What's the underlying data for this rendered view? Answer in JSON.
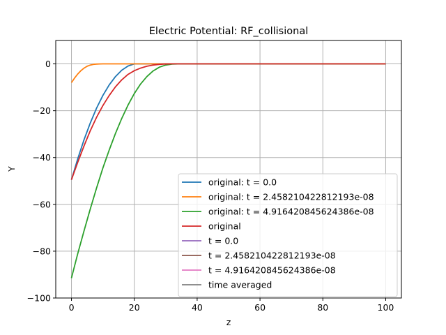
{
  "chart_data": {
    "type": "line",
    "title": "Electric Potential: RF_collisional",
    "xlabel": "z",
    "ylabel": "Y",
    "xlim": [
      -5,
      105
    ],
    "ylim": [
      -100,
      10
    ],
    "xticks": [
      0,
      20,
      40,
      60,
      80,
      100
    ],
    "yticks": [
      -100,
      -80,
      -60,
      -40,
      -20,
      0
    ],
    "xtick_labels": [
      "0",
      "20",
      "40",
      "60",
      "80",
      "100"
    ],
    "ytick_labels": [
      "−100",
      "−80",
      "−60",
      "−40",
      "−20",
      "0"
    ],
    "grid": true,
    "legend_position": "lower-right",
    "series": [
      {
        "name": "original: t = 0.0",
        "color": "#1f77b4",
        "x": [
          0,
          2,
          4,
          6,
          8,
          10,
          12,
          14,
          16,
          18,
          20,
          22,
          24,
          26,
          30,
          40,
          60,
          80,
          100
        ],
        "y": [
          -49.5,
          -40.5,
          -32.4,
          -25.2,
          -18.9,
          -13.5,
          -9.0,
          -5.4,
          -2.7,
          -0.9,
          0,
          0,
          0,
          0,
          0,
          0,
          0,
          0,
          0
        ]
      },
      {
        "name": "original: t = 2.458210422812193e-08",
        "color": "#ff7f0e",
        "x": [
          0,
          1,
          2,
          3,
          4,
          5,
          6,
          7,
          8,
          9,
          10,
          12,
          15,
          20,
          40,
          60,
          80,
          100
        ],
        "y": [
          -8.0,
          -6.0,
          -4.3,
          -2.9,
          -1.8,
          -1.0,
          -0.5,
          -0.2,
          -0.08,
          -0.03,
          0,
          0,
          0,
          0,
          0,
          0,
          0,
          0
        ]
      },
      {
        "name": "original: t = 4.916420845624386e-08",
        "color": "#2ca02c",
        "x": [
          0,
          2,
          4,
          6,
          8,
          10,
          12,
          14,
          16,
          18,
          20,
          22,
          24,
          26,
          28,
          30,
          32,
          34,
          40,
          60,
          80,
          100
        ],
        "y": [
          -91.5,
          -81.0,
          -71.3,
          -61.9,
          -53.0,
          -44.5,
          -36.8,
          -29.7,
          -23.3,
          -17.6,
          -12.7,
          -8.6,
          -5.4,
          -3.0,
          -1.4,
          -0.5,
          -0.1,
          0,
          0,
          0,
          0,
          0
        ]
      },
      {
        "name": "original",
        "color": "#d62728",
        "x": [
          0,
          2,
          4,
          6,
          8,
          10,
          12,
          14,
          16,
          18,
          20,
          22,
          24,
          26,
          28,
          30,
          32,
          40,
          60,
          80,
          100
        ],
        "y": [
          -49.5,
          -42.0,
          -35.0,
          -28.5,
          -22.8,
          -17.8,
          -13.5,
          -9.8,
          -6.8,
          -4.5,
          -2.9,
          -1.8,
          -1.0,
          -0.5,
          -0.2,
          -0.05,
          0,
          0,
          0,
          0,
          0
        ]
      },
      {
        "name": "t = 0.0",
        "color": "#9467bd",
        "x": [],
        "y": []
      },
      {
        "name": "t = 2.458210422812193e-08",
        "color": "#8c564b",
        "x": [],
        "y": []
      },
      {
        "name": "t = 4.916420845624386e-08",
        "color": "#e377c2",
        "x": [],
        "y": []
      },
      {
        "name": "time averaged",
        "color": "#7f7f7f",
        "x": [],
        "y": []
      }
    ]
  }
}
